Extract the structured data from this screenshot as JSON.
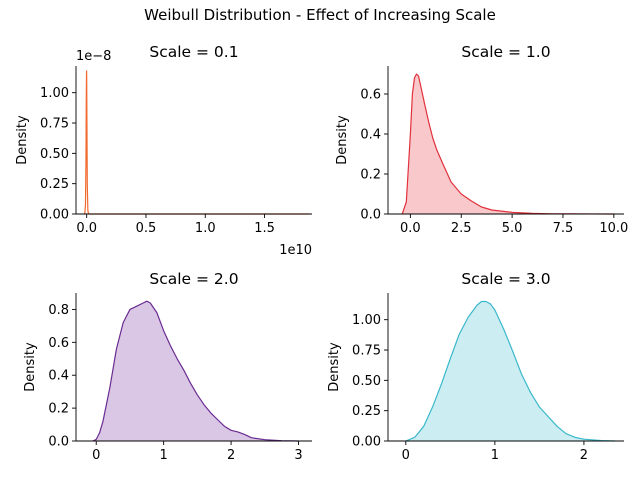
{
  "figure": {
    "suptitle": "Weibull Distribution - Effect of Increasing Scale"
  },
  "chart_data": [
    {
      "type": "area",
      "title": "Scale = 0.1",
      "xlabel": "",
      "ylabel": "Density",
      "color": "#f16a2e",
      "fill": false,
      "xlim": [
        -0.09,
        1.9
      ],
      "ylim": [
        0,
        1.22
      ],
      "x_offset_label": "1e10",
      "y_offset_label": "1e−8",
      "xticks": [
        0,
        0.5,
        1.0,
        1.5
      ],
      "xtick_labels": [
        "0.0",
        "0.5",
        "1.0",
        "1.5"
      ],
      "yticks": [
        0,
        0.25,
        0.5,
        0.75,
        1.0
      ],
      "ytick_labels": [
        "0.00",
        "0.25",
        "0.50",
        "0.75",
        "1.00"
      ],
      "x": [
        -0.02,
        -0.015,
        -0.01,
        -0.006,
        -0.003,
        -0.001,
        0.0,
        0.002,
        0.005,
        0.01,
        0.015,
        0.02,
        0.03,
        0.5,
        1.0,
        1.5,
        1.88
      ],
      "y": [
        0,
        0.01,
        0.08,
        0.45,
        1.0,
        1.18,
        1.15,
        0.8,
        0.25,
        0.03,
        0.005,
        0.001,
        0.0,
        0.0,
        0.0,
        0.0,
        0.0
      ]
    },
    {
      "type": "area",
      "title": "Scale = 1.0",
      "xlabel": "",
      "ylabel": "Density",
      "color": "#e2313c",
      "fill": true,
      "fill_color": "#f8c8cb",
      "xlim": [
        -1.1,
        10.5
      ],
      "ylim": [
        0,
        0.74
      ],
      "xticks": [
        0,
        2.5,
        5,
        7.5,
        10
      ],
      "xtick_labels": [
        "0.0",
        "2.5",
        "5.0",
        "7.5",
        "10.0"
      ],
      "yticks": [
        0,
        0.2,
        0.4,
        0.6
      ],
      "ytick_labels": [
        "0.0",
        "0.2",
        "0.4",
        "0.6"
      ],
      "x": [
        -0.4,
        -0.2,
        0.0,
        0.1,
        0.2,
        0.3,
        0.4,
        0.55,
        0.7,
        0.9,
        1.1,
        1.3,
        1.6,
        2.0,
        2.5,
        3.0,
        3.5,
        4.0,
        5.0,
        6.0,
        7.0,
        8.0,
        9.0,
        10.0
      ],
      "y": [
        0.0,
        0.06,
        0.4,
        0.6,
        0.68,
        0.7,
        0.69,
        0.62,
        0.55,
        0.46,
        0.38,
        0.32,
        0.25,
        0.16,
        0.1,
        0.065,
        0.035,
        0.02,
        0.008,
        0.003,
        0.001,
        0.0005,
        0.0002,
        0.0
      ]
    },
    {
      "type": "area",
      "title": "Scale = 2.0",
      "xlabel": "",
      "ylabel": "Density",
      "color": "#6a2c91",
      "fill": true,
      "fill_color": "#d9c7e5",
      "xlim": [
        -0.3,
        3.2
      ],
      "ylim": [
        0,
        0.9
      ],
      "xticks": [
        0,
        1,
        2,
        3
      ],
      "xtick_labels": [
        "0",
        "1",
        "2",
        "3"
      ],
      "yticks": [
        0,
        0.2,
        0.4,
        0.6,
        0.8
      ],
      "ytick_labels": [
        "0.0",
        "0.2",
        "0.4",
        "0.6",
        "0.8"
      ],
      "x": [
        -0.05,
        0.0,
        0.05,
        0.1,
        0.2,
        0.3,
        0.4,
        0.5,
        0.6,
        0.7,
        0.75,
        0.8,
        0.9,
        1.0,
        1.1,
        1.2,
        1.3,
        1.4,
        1.5,
        1.6,
        1.7,
        1.8,
        1.9,
        2.0,
        2.1,
        2.2,
        2.3,
        2.5,
        2.75,
        3.0
      ],
      "y": [
        0,
        0.01,
        0.05,
        0.12,
        0.32,
        0.56,
        0.72,
        0.8,
        0.82,
        0.84,
        0.85,
        0.84,
        0.78,
        0.67,
        0.58,
        0.5,
        0.43,
        0.35,
        0.28,
        0.22,
        0.17,
        0.13,
        0.09,
        0.065,
        0.055,
        0.04,
        0.02,
        0.008,
        0.002,
        0.0
      ]
    },
    {
      "type": "area",
      "title": "Scale = 3.0",
      "xlabel": "",
      "ylabel": "Density",
      "color": "#3bb8cb",
      "fill": true,
      "fill_color": "#cceef2",
      "xlim": [
        -0.2,
        2.45
      ],
      "ylim": [
        0,
        1.22
      ],
      "xticks": [
        0,
        1,
        2
      ],
      "xtick_labels": [
        "0",
        "1",
        "2"
      ],
      "yticks": [
        0,
        0.25,
        0.5,
        0.75,
        1.0
      ],
      "ytick_labels": [
        "0.00",
        "0.25",
        "0.50",
        "0.75",
        "1.00"
      ],
      "x": [
        0.0,
        0.1,
        0.2,
        0.3,
        0.4,
        0.5,
        0.6,
        0.7,
        0.8,
        0.85,
        0.9,
        0.95,
        1.0,
        1.1,
        1.2,
        1.3,
        1.4,
        1.5,
        1.6,
        1.7,
        1.8,
        1.9,
        2.0,
        2.2,
        2.35
      ],
      "y": [
        0.0,
        0.03,
        0.12,
        0.28,
        0.47,
        0.68,
        0.88,
        1.02,
        1.12,
        1.15,
        1.15,
        1.13,
        1.08,
        0.92,
        0.74,
        0.55,
        0.4,
        0.28,
        0.2,
        0.12,
        0.06,
        0.03,
        0.015,
        0.003,
        0.0
      ]
    }
  ]
}
